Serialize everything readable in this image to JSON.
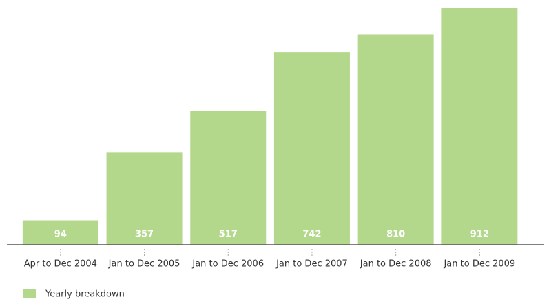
{
  "chart_data": {
    "type": "bar",
    "categories": [
      "Apr to Dec 2004",
      "Jan to Dec 2005",
      "Jan to Dec 2006",
      "Jan to Dec 2007",
      "Jan to Dec 2008",
      "Jan to Dec 2009"
    ],
    "series": [
      {
        "name": "Yearly breakdown",
        "color": "#b3d88c",
        "values": [
          94,
          357,
          517,
          742,
          810,
          912
        ]
      }
    ]
  }
}
